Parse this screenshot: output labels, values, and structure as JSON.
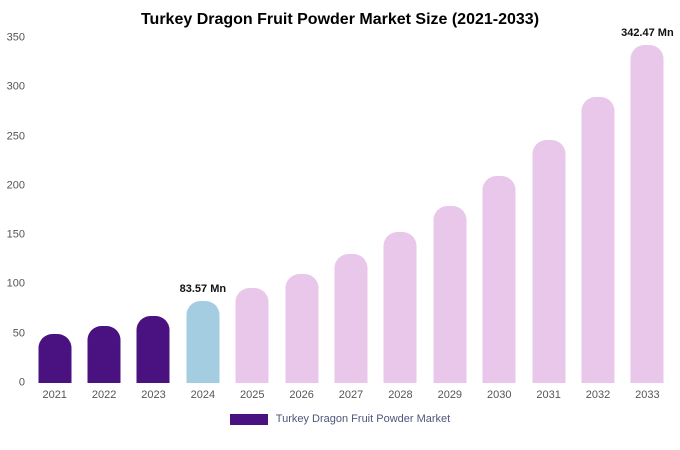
{
  "title": "Turkey Dragon Fruit Powder Market Size (2021-2033)",
  "legend": {
    "label": "Turkey Dragon Fruit Powder Market",
    "swatch_color": "#4a1181"
  },
  "chart_data": {
    "type": "bar",
    "title": "Turkey Dragon Fruit Powder Market Size (2021-2033)",
    "categories": [
      "2021",
      "2022",
      "2023",
      "2024",
      "2025",
      "2026",
      "2027",
      "2028",
      "2029",
      "2030",
      "2031",
      "2032",
      "2033"
    ],
    "values": [
      50,
      58,
      68,
      83.57,
      96,
      111,
      131,
      153,
      180,
      210,
      247,
      290,
      342.47
    ],
    "unit": "Mn",
    "xlabel": "",
    "ylabel": "",
    "ylim": [
      0,
      350
    ],
    "yticks": [
      0,
      50,
      100,
      150,
      200,
      250,
      300,
      350
    ],
    "grid": false,
    "legend_position": "bottom",
    "annotations": [
      {
        "category": "2024",
        "text": "83.57 Mn"
      },
      {
        "category": "2033",
        "text": "342.47 Mn"
      }
    ],
    "colors": {
      "historical": "#4a1181",
      "base_year": "#a5cde2",
      "forecast": "#e9c7ea",
      "tick_text": "#555555",
      "legend_text": "#4d587a"
    },
    "bar_colors": [
      "#4a1181",
      "#4a1181",
      "#4a1181",
      "#a5cde2",
      "#e9c7ea",
      "#e9c7ea",
      "#e9c7ea",
      "#e9c7ea",
      "#e9c7ea",
      "#e9c7ea",
      "#e9c7ea",
      "#e9c7ea",
      "#e9c7ea"
    ]
  }
}
